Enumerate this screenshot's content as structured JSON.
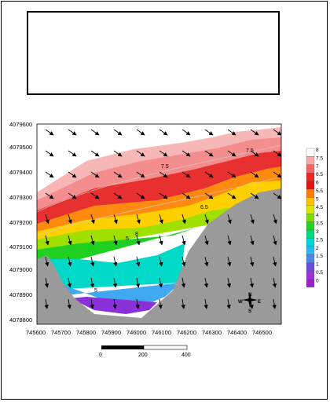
{
  "map": {
    "y_ticks": [
      "4079600",
      "4079500",
      "4079400",
      "4079300",
      "4079200",
      "4079100",
      "4079000",
      "4078900",
      "4078800"
    ],
    "x_ticks": [
      "745600",
      "745700",
      "745800",
      "745900",
      "746000",
      "746100",
      "746200",
      "746300",
      "746400",
      "746500"
    ],
    "contour_labels": [
      "7.5",
      "6.5",
      "5",
      "5",
      "8",
      "7.5"
    ],
    "legend": {
      "labels": [
        "8",
        "7.5",
        "7",
        "6.5",
        "6",
        "5.5",
        "5",
        "4.5",
        "4",
        "3.5",
        "3",
        "2.5",
        "2",
        "1.5",
        "1",
        "0.5",
        "0"
      ],
      "colors": [
        "#ffffff",
        "#f6a7a7",
        "#f26464",
        "#f22424",
        "#e51010",
        "#ff7a00",
        "#ffc000",
        "#d6e600",
        "#7cdc00",
        "#23d323",
        "#00d880",
        "#00d4d4",
        "#28b8f0",
        "#4a88ee",
        "#6a4de0",
        "#9c32d8",
        "#9922cc"
      ]
    },
    "scale_bar": {
      "labels": [
        "0",
        "200",
        "400"
      ]
    },
    "compass": {
      "n": "N",
      "s": "S",
      "e": "E",
      "w": "W"
    }
  }
}
